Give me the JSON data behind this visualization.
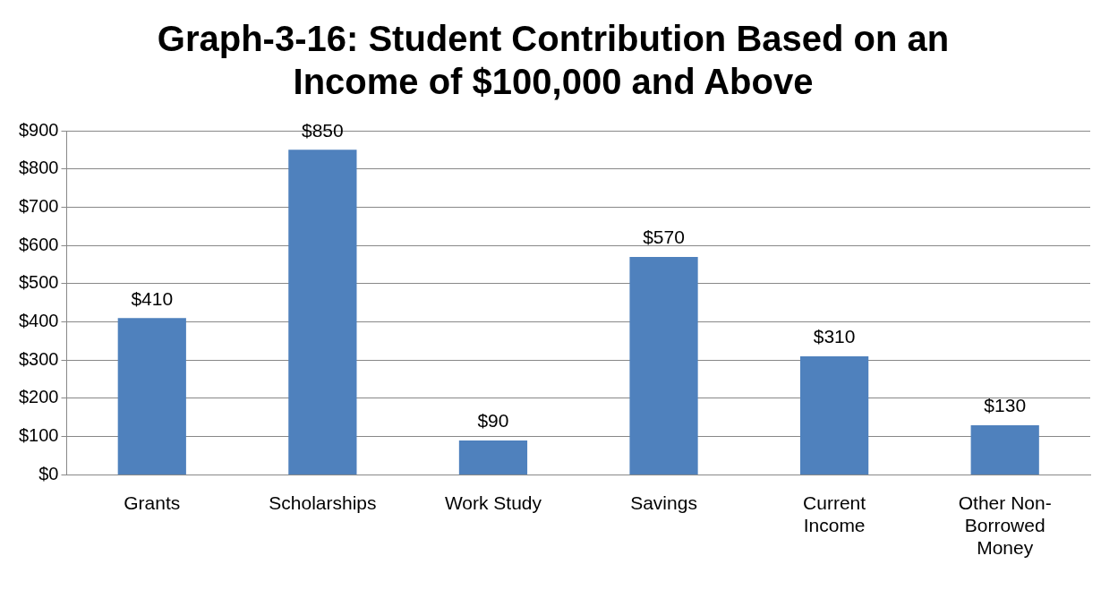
{
  "chart_data": {
    "type": "bar",
    "title": "Graph-3-16: Student Contribution Based on an Income of $100,000 and Above",
    "categories": [
      "Grants",
      "Scholarships",
      "Work Study",
      "Savings",
      "Current Income",
      "Other Non-Borrowed Money"
    ],
    "values": [
      410,
      850,
      90,
      570,
      310,
      130
    ],
    "value_labels": [
      "$410",
      "$850",
      "$90",
      "$570",
      "$310",
      "$130"
    ],
    "color": "#4f81bd",
    "ylim": [
      0,
      900
    ],
    "yticks": [
      {
        "value": 0,
        "label": "$0"
      },
      {
        "value": 100,
        "label": "$100"
      },
      {
        "value": 200,
        "label": "$200"
      },
      {
        "value": 300,
        "label": "$300"
      },
      {
        "value": 400,
        "label": "$400"
      },
      {
        "value": 500,
        "label": "$500"
      },
      {
        "value": 600,
        "label": "$600"
      },
      {
        "value": 700,
        "label": "$700"
      },
      {
        "value": 800,
        "label": "$800"
      },
      {
        "value": 900,
        "label": "$900"
      }
    ],
    "grid": "y",
    "legend": false
  }
}
